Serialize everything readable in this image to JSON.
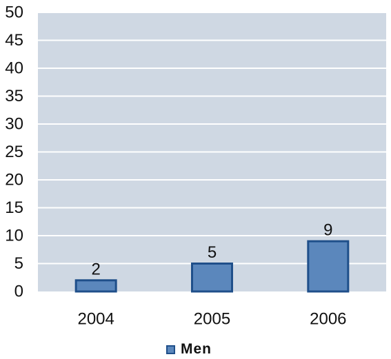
{
  "chart_data": {
    "type": "bar",
    "categories": [
      "2004",
      "2005",
      "2006"
    ],
    "series": [
      {
        "name": "Men",
        "values": [
          2,
          5,
          9
        ]
      }
    ],
    "ylim": [
      0,
      50
    ],
    "yticks": [
      0,
      5,
      10,
      15,
      20,
      25,
      30,
      35,
      40,
      45,
      50
    ],
    "grid": true,
    "legend_position": "bottom-center",
    "data_labels": true
  },
  "colors": {
    "plot_background": "#cfd8e3",
    "gridline": "#ffffff",
    "bar_fill": "#5b87bc",
    "bar_stroke": "#1f4f8a"
  }
}
